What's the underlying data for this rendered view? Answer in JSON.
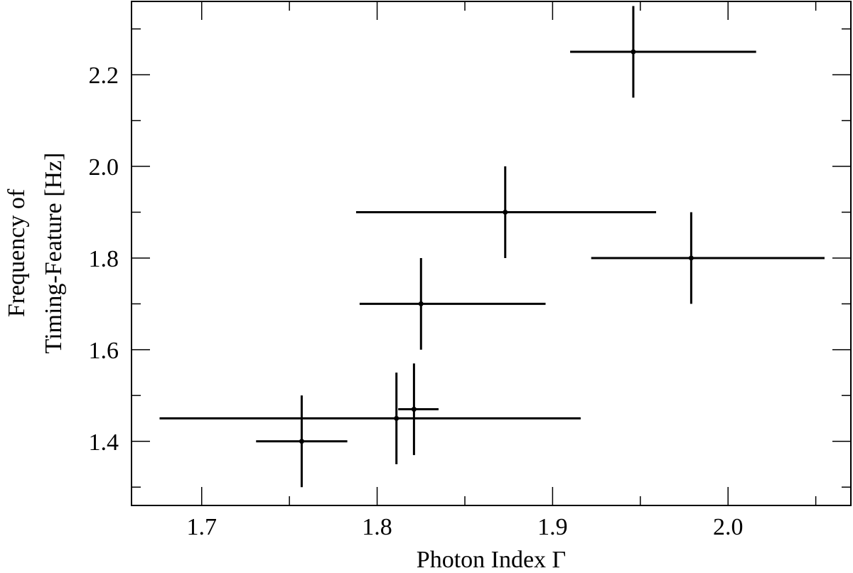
{
  "chart_data": {
    "type": "scatter",
    "title": "",
    "xlabel": "Photon Index Γ",
    "ylabel_lines": [
      "Frequency of",
      "Timing-Feature [Hz]"
    ],
    "xlim": [
      1.66,
      2.07
    ],
    "ylim": [
      1.26,
      2.36
    ],
    "x_ticks_major": [
      1.7,
      1.8,
      1.9,
      2.0
    ],
    "x_tick_labels": [
      "1.7",
      "1.8",
      "1.9",
      "2.0"
    ],
    "y_ticks_major": [
      1.4,
      1.6,
      1.8,
      2.0,
      2.2
    ],
    "y_tick_labels": [
      "1.4",
      "1.6",
      "1.8",
      "2.0",
      "2.2"
    ],
    "grid": false,
    "series": [
      {
        "points": [
          {
            "x": 1.757,
            "y": 1.4,
            "xerr": [
              1.731,
              1.783
            ],
            "yerr": [
              1.3,
              1.5
            ]
          },
          {
            "x": 1.811,
            "y": 1.45,
            "xerr": [
              1.676,
              1.916
            ],
            "yerr": [
              1.35,
              1.55
            ]
          },
          {
            "x": 1.821,
            "y": 1.47,
            "xerr": [
              1.812,
              1.835
            ],
            "yerr": [
              1.37,
              1.57
            ]
          },
          {
            "x": 1.825,
            "y": 1.7,
            "xerr": [
              1.79,
              1.896
            ],
            "yerr": [
              1.6,
              1.8
            ]
          },
          {
            "x": 1.873,
            "y": 1.9,
            "xerr": [
              1.788,
              1.959
            ],
            "yerr": [
              1.8,
              2.0
            ]
          },
          {
            "x": 1.946,
            "y": 2.25,
            "xerr": [
              1.91,
              2.016
            ],
            "yerr": [
              2.15,
              2.35
            ]
          },
          {
            "x": 1.979,
            "y": 1.8,
            "xerr": [
              1.922,
              2.055
            ],
            "yerr": [
              1.7,
              1.9
            ]
          }
        ]
      }
    ]
  }
}
